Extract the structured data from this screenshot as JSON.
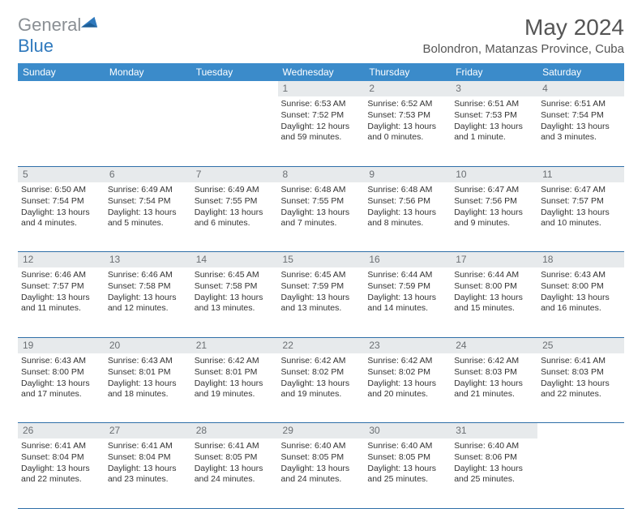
{
  "brand": {
    "word1": "General",
    "word2": "Blue"
  },
  "title": "May 2024",
  "location": "Bolondron, Matanzas Province, Cuba",
  "colors": {
    "header_bg": "#3b8bca",
    "header_text": "#ffffff",
    "daynum_bg": "#e7eaec",
    "daynum_text": "#6b6f73",
    "rule": "#2f6fa8",
    "logo_gray": "#8a8f94",
    "logo_blue": "#2f79bd"
  },
  "weekdays": [
    "Sunday",
    "Monday",
    "Tuesday",
    "Wednesday",
    "Thursday",
    "Friday",
    "Saturday"
  ],
  "weeks": [
    {
      "nums": [
        "",
        "",
        "",
        "1",
        "2",
        "3",
        "4"
      ],
      "cells": [
        null,
        null,
        null,
        {
          "sunrise": "6:53 AM",
          "sunset": "7:52 PM",
          "daylight": "12 hours and 59 minutes."
        },
        {
          "sunrise": "6:52 AM",
          "sunset": "7:53 PM",
          "daylight": "13 hours and 0 minutes."
        },
        {
          "sunrise": "6:51 AM",
          "sunset": "7:53 PM",
          "daylight": "13 hours and 1 minute."
        },
        {
          "sunrise": "6:51 AM",
          "sunset": "7:54 PM",
          "daylight": "13 hours and 3 minutes."
        }
      ]
    },
    {
      "nums": [
        "5",
        "6",
        "7",
        "8",
        "9",
        "10",
        "11"
      ],
      "cells": [
        {
          "sunrise": "6:50 AM",
          "sunset": "7:54 PM",
          "daylight": "13 hours and 4 minutes."
        },
        {
          "sunrise": "6:49 AM",
          "sunset": "7:54 PM",
          "daylight": "13 hours and 5 minutes."
        },
        {
          "sunrise": "6:49 AM",
          "sunset": "7:55 PM",
          "daylight": "13 hours and 6 minutes."
        },
        {
          "sunrise": "6:48 AM",
          "sunset": "7:55 PM",
          "daylight": "13 hours and 7 minutes."
        },
        {
          "sunrise": "6:48 AM",
          "sunset": "7:56 PM",
          "daylight": "13 hours and 8 minutes."
        },
        {
          "sunrise": "6:47 AM",
          "sunset": "7:56 PM",
          "daylight": "13 hours and 9 minutes."
        },
        {
          "sunrise": "6:47 AM",
          "sunset": "7:57 PM",
          "daylight": "13 hours and 10 minutes."
        }
      ]
    },
    {
      "nums": [
        "12",
        "13",
        "14",
        "15",
        "16",
        "17",
        "18"
      ],
      "cells": [
        {
          "sunrise": "6:46 AM",
          "sunset": "7:57 PM",
          "daylight": "13 hours and 11 minutes."
        },
        {
          "sunrise": "6:46 AM",
          "sunset": "7:58 PM",
          "daylight": "13 hours and 12 minutes."
        },
        {
          "sunrise": "6:45 AM",
          "sunset": "7:58 PM",
          "daylight": "13 hours and 13 minutes."
        },
        {
          "sunrise": "6:45 AM",
          "sunset": "7:59 PM",
          "daylight": "13 hours and 13 minutes."
        },
        {
          "sunrise": "6:44 AM",
          "sunset": "7:59 PM",
          "daylight": "13 hours and 14 minutes."
        },
        {
          "sunrise": "6:44 AM",
          "sunset": "8:00 PM",
          "daylight": "13 hours and 15 minutes."
        },
        {
          "sunrise": "6:43 AM",
          "sunset": "8:00 PM",
          "daylight": "13 hours and 16 minutes."
        }
      ]
    },
    {
      "nums": [
        "19",
        "20",
        "21",
        "22",
        "23",
        "24",
        "25"
      ],
      "cells": [
        {
          "sunrise": "6:43 AM",
          "sunset": "8:00 PM",
          "daylight": "13 hours and 17 minutes."
        },
        {
          "sunrise": "6:43 AM",
          "sunset": "8:01 PM",
          "daylight": "13 hours and 18 minutes."
        },
        {
          "sunrise": "6:42 AM",
          "sunset": "8:01 PM",
          "daylight": "13 hours and 19 minutes."
        },
        {
          "sunrise": "6:42 AM",
          "sunset": "8:02 PM",
          "daylight": "13 hours and 19 minutes."
        },
        {
          "sunrise": "6:42 AM",
          "sunset": "8:02 PM",
          "daylight": "13 hours and 20 minutes."
        },
        {
          "sunrise": "6:42 AM",
          "sunset": "8:03 PM",
          "daylight": "13 hours and 21 minutes."
        },
        {
          "sunrise": "6:41 AM",
          "sunset": "8:03 PM",
          "daylight": "13 hours and 22 minutes."
        }
      ]
    },
    {
      "nums": [
        "26",
        "27",
        "28",
        "29",
        "30",
        "31",
        ""
      ],
      "cells": [
        {
          "sunrise": "6:41 AM",
          "sunset": "8:04 PM",
          "daylight": "13 hours and 22 minutes."
        },
        {
          "sunrise": "6:41 AM",
          "sunset": "8:04 PM",
          "daylight": "13 hours and 23 minutes."
        },
        {
          "sunrise": "6:41 AM",
          "sunset": "8:05 PM",
          "daylight": "13 hours and 24 minutes."
        },
        {
          "sunrise": "6:40 AM",
          "sunset": "8:05 PM",
          "daylight": "13 hours and 24 minutes."
        },
        {
          "sunrise": "6:40 AM",
          "sunset": "8:05 PM",
          "daylight": "13 hours and 25 minutes."
        },
        {
          "sunrise": "6:40 AM",
          "sunset": "8:06 PM",
          "daylight": "13 hours and 25 minutes."
        },
        null
      ]
    }
  ],
  "labels": {
    "sunrise": "Sunrise: ",
    "sunset": "Sunset: ",
    "daylight": "Daylight: "
  }
}
